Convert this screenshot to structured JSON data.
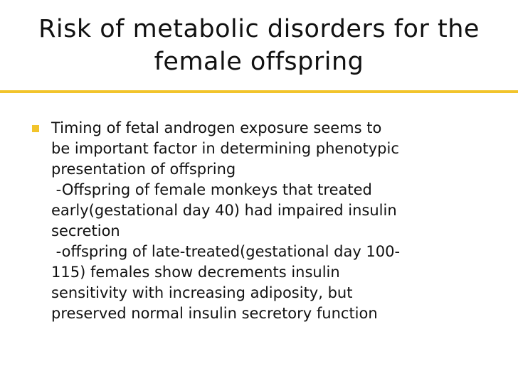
{
  "slide": {
    "title_line1": "Risk of metabolic disorders for the",
    "title_line2": "female offspring",
    "accent_color": "#f2c42c",
    "bullet_icon": "square-bullet-icon",
    "bullet": {
      "lines": [
        "Timing of fetal androgen exposure seems to",
        "be important factor in determining phenotypic",
        "presentation of offspring"
      ]
    },
    "sub1": {
      "lines": [
        " -Offspring of female monkeys that treated",
        "early(gestational day 40) had impaired insulin",
        "secretion"
      ]
    },
    "sub2": {
      "lines": [
        " -offspring of late-treated(gestational day 100-",
        "115) females show decrements insulin",
        "sensitivity with increasing adiposity, but",
        "preserved normal insulin secretory function"
      ]
    }
  }
}
